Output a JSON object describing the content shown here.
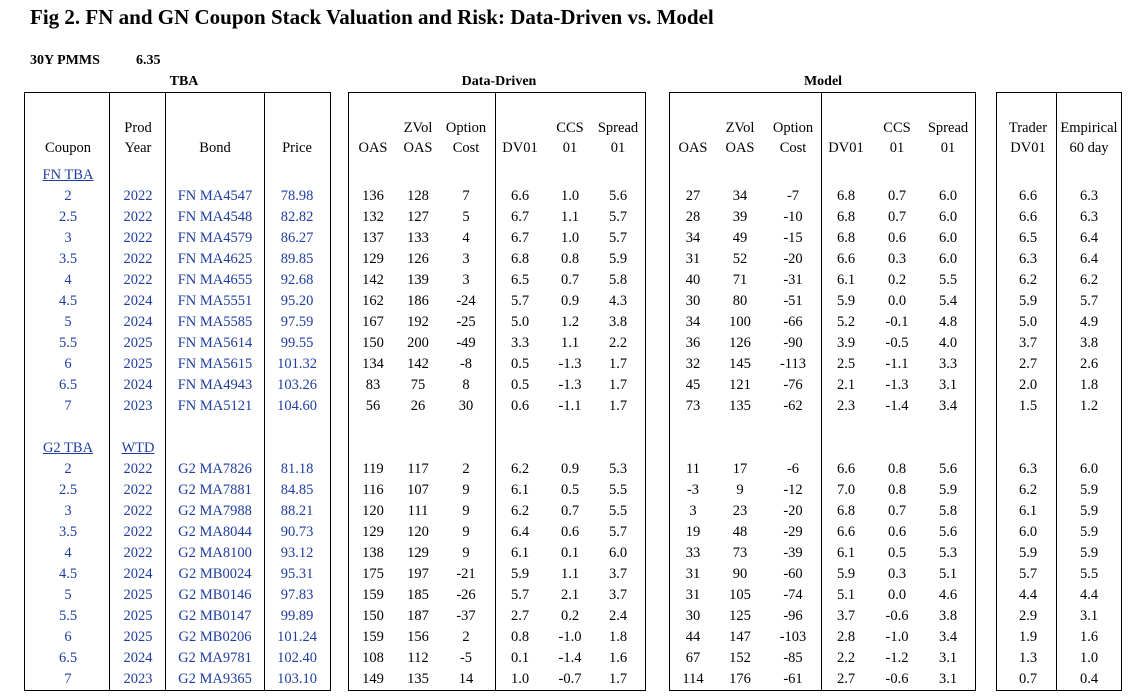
{
  "title": "Fig 2. FN and GN Coupon Stack Valuation and Risk: Data-Driven vs. Model",
  "pmms": {
    "label": "30Y PMMS",
    "value": "6.35"
  },
  "groups": {
    "tba": "TBA",
    "data_driven": "Data-Driven",
    "model": "Model"
  },
  "headers": {
    "coupon": "Coupon",
    "prod_year_1": "Prod",
    "prod_year_2": "Year",
    "bond": "Bond",
    "price": "Price",
    "dd_oas": "OAS",
    "dd_zvol_1": "ZVol",
    "dd_zvol_2": "OAS",
    "dd_option_1": "Option",
    "dd_option_2": "Cost",
    "dd_dv01": "DV01",
    "dd_ccs_1": "CCS",
    "dd_ccs_2": "01",
    "dd_spread_1": "Spread",
    "dd_spread_2": "01",
    "m_oas": "OAS",
    "m_zvol_1": "ZVol",
    "m_zvol_2": "OAS",
    "m_option_1": "Option",
    "m_option_2": "Cost",
    "m_dv01": "DV01",
    "m_ccs_1": "CCS",
    "m_ccs_2": "01",
    "m_spread_1": "Spread",
    "m_spread_2": "01",
    "trader_1": "Trader",
    "trader_2": "DV01",
    "emp_1": "Empirical",
    "emp_2": "60 day"
  },
  "fn": {
    "label": "FN TBA",
    "rows": [
      [
        "2",
        "2022",
        "FN MA4547",
        "78.98",
        "136",
        "128",
        "7",
        "6.6",
        "1.0",
        "5.6",
        "27",
        "34",
        "-7",
        "6.8",
        "0.7",
        "6.0",
        "6.6",
        "6.3"
      ],
      [
        "2.5",
        "2022",
        "FN MA4548",
        "82.82",
        "132",
        "127",
        "5",
        "6.7",
        "1.1",
        "5.7",
        "28",
        "39",
        "-10",
        "6.8",
        "0.7",
        "6.0",
        "6.6",
        "6.3"
      ],
      [
        "3",
        "2022",
        "FN MA4579",
        "86.27",
        "137",
        "133",
        "4",
        "6.7",
        "1.0",
        "5.7",
        "34",
        "49",
        "-15",
        "6.8",
        "0.6",
        "6.0",
        "6.5",
        "6.4"
      ],
      [
        "3.5",
        "2022",
        "FN MA4625",
        "89.85",
        "129",
        "126",
        "3",
        "6.8",
        "0.8",
        "5.9",
        "31",
        "52",
        "-20",
        "6.6",
        "0.3",
        "6.0",
        "6.3",
        "6.4"
      ],
      [
        "4",
        "2022",
        "FN MA4655",
        "92.68",
        "142",
        "139",
        "3",
        "6.5",
        "0.7",
        "5.8",
        "40",
        "71",
        "-31",
        "6.1",
        "0.2",
        "5.5",
        "6.2",
        "6.2"
      ],
      [
        "4.5",
        "2024",
        "FN MA5551",
        "95.20",
        "162",
        "186",
        "-24",
        "5.7",
        "0.9",
        "4.3",
        "30",
        "80",
        "-51",
        "5.9",
        "0.0",
        "5.4",
        "5.9",
        "5.7"
      ],
      [
        "5",
        "2024",
        "FN MA5585",
        "97.59",
        "167",
        "192",
        "-25",
        "5.0",
        "1.2",
        "3.8",
        "34",
        "100",
        "-66",
        "5.2",
        "-0.1",
        "4.8",
        "5.0",
        "4.9"
      ],
      [
        "5.5",
        "2025",
        "FN MA5614",
        "99.55",
        "150",
        "200",
        "-49",
        "3.3",
        "1.1",
        "2.2",
        "36",
        "126",
        "-90",
        "3.9",
        "-0.5",
        "4.0",
        "3.7",
        "3.8"
      ],
      [
        "6",
        "2025",
        "FN MA5615",
        "101.32",
        "134",
        "142",
        "-8",
        "0.5",
        "-1.3",
        "1.7",
        "32",
        "145",
        "-113",
        "2.5",
        "-1.1",
        "3.3",
        "2.7",
        "2.6"
      ],
      [
        "6.5",
        "2024",
        "FN MA4943",
        "103.26",
        "83",
        "75",
        "8",
        "0.5",
        "-1.3",
        "1.7",
        "45",
        "121",
        "-76",
        "2.1",
        "-1.3",
        "3.1",
        "2.0",
        "1.8"
      ],
      [
        "7",
        "2023",
        "FN MA5121",
        "104.60",
        "56",
        "26",
        "30",
        "0.6",
        "-1.1",
        "1.7",
        "73",
        "135",
        "-62",
        "2.3",
        "-1.4",
        "3.4",
        "1.5",
        "1.2"
      ]
    ]
  },
  "g2": {
    "label": "G2 TBA",
    "wtd_label": "WTD",
    "rows": [
      [
        "2",
        "2022",
        "G2 MA7826",
        "81.18",
        "119",
        "117",
        "2",
        "6.2",
        "0.9",
        "5.3",
        "11",
        "17",
        "-6",
        "6.6",
        "0.8",
        "5.6",
        "6.3",
        "6.0"
      ],
      [
        "2.5",
        "2022",
        "G2 MA7881",
        "84.85",
        "116",
        "107",
        "9",
        "6.1",
        "0.5",
        "5.5",
        "-3",
        "9",
        "-12",
        "7.0",
        "0.8",
        "5.9",
        "6.2",
        "5.9"
      ],
      [
        "3",
        "2022",
        "G2 MA7988",
        "88.21",
        "120",
        "111",
        "9",
        "6.2",
        "0.7",
        "5.5",
        "3",
        "23",
        "-20",
        "6.8",
        "0.7",
        "5.8",
        "6.1",
        "5.9"
      ],
      [
        "3.5",
        "2022",
        "G2 MA8044",
        "90.73",
        "129",
        "120",
        "9",
        "6.4",
        "0.6",
        "5.7",
        "19",
        "48",
        "-29",
        "6.6",
        "0.6",
        "5.6",
        "6.0",
        "5.9"
      ],
      [
        "4",
        "2022",
        "G2 MA8100",
        "93.12",
        "138",
        "129",
        "9",
        "6.1",
        "0.1",
        "6.0",
        "33",
        "73",
        "-39",
        "6.1",
        "0.5",
        "5.3",
        "5.9",
        "5.9"
      ],
      [
        "4.5",
        "2024",
        "G2 MB0024",
        "95.31",
        "175",
        "197",
        "-21",
        "5.9",
        "1.1",
        "3.7",
        "31",
        "90",
        "-60",
        "5.9",
        "0.3",
        "5.1",
        "5.7",
        "5.5"
      ],
      [
        "5",
        "2025",
        "G2 MB0146",
        "97.83",
        "159",
        "185",
        "-26",
        "5.7",
        "2.1",
        "3.7",
        "31",
        "105",
        "-74",
        "5.1",
        "0.0",
        "4.6",
        "4.4",
        "4.4"
      ],
      [
        "5.5",
        "2025",
        "G2 MB0147",
        "99.89",
        "150",
        "187",
        "-37",
        "2.7",
        "0.2",
        "2.4",
        "30",
        "125",
        "-96",
        "3.7",
        "-0.6",
        "3.8",
        "2.9",
        "3.1"
      ],
      [
        "6",
        "2025",
        "G2 MB0206",
        "101.24",
        "159",
        "156",
        "2",
        "0.8",
        "-1.0",
        "1.8",
        "44",
        "147",
        "-103",
        "2.8",
        "-1.0",
        "3.4",
        "1.9",
        "1.6"
      ],
      [
        "6.5",
        "2024",
        "G2 MA9781",
        "102.40",
        "108",
        "112",
        "-5",
        "0.1",
        "-1.4",
        "1.6",
        "67",
        "152",
        "-85",
        "2.2",
        "-1.2",
        "3.1",
        "1.3",
        "1.0"
      ],
      [
        "7",
        "2023",
        "G2 MA9365",
        "103.10",
        "149",
        "135",
        "14",
        "1.0",
        "-0.7",
        "1.7",
        "114",
        "176",
        "-61",
        "2.7",
        "-0.6",
        "3.1",
        "0.7",
        "0.4"
      ]
    ]
  }
}
